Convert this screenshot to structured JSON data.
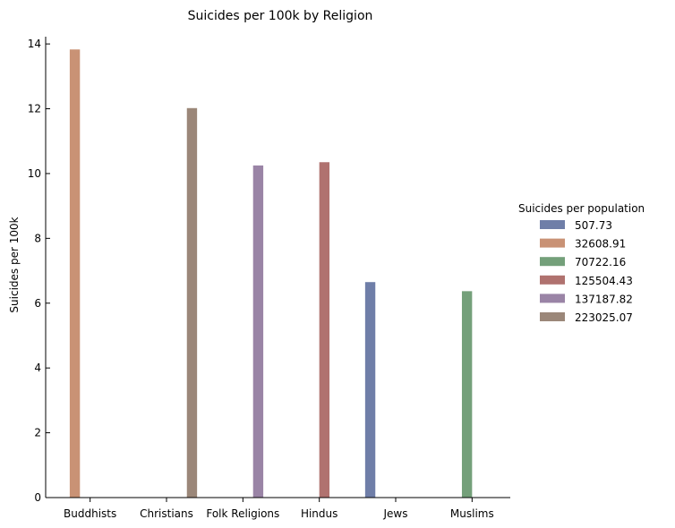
{
  "chart_data": {
    "type": "bar",
    "title": "Suicides per 100k by Religion",
    "xlabel": "",
    "ylabel": "Suicides per 100k",
    "ylim": [
      0,
      14.5
    ],
    "yticks": [
      0,
      2,
      4,
      6,
      8,
      10,
      12,
      14
    ],
    "categories": [
      "Buddhists",
      "Christians",
      "Folk Religions",
      "Hindus",
      "Jews",
      "Muslims"
    ],
    "legend_title": "Suicides per population",
    "legend_position": "right",
    "series": [
      {
        "name": "507.73",
        "color": "#6f7ea8",
        "values": [
          null,
          null,
          null,
          null,
          6.65,
          null
        ]
      },
      {
        "name": "32608.91",
        "color": "#c99275",
        "values": [
          13.83,
          null,
          null,
          null,
          null,
          null
        ]
      },
      {
        "name": "70722.16",
        "color": "#74a07a",
        "values": [
          null,
          null,
          null,
          null,
          null,
          6.37
        ]
      },
      {
        "name": "125504.43",
        "color": "#b0726f",
        "values": [
          null,
          null,
          null,
          10.35,
          null,
          null
        ]
      },
      {
        "name": "137187.82",
        "color": "#9a84a6",
        "values": [
          null,
          null,
          10.25,
          null,
          null,
          null
        ]
      },
      {
        "name": "223025.07",
        "color": "#9b8779",
        "values": [
          null,
          12.02,
          null,
          null,
          null,
          null
        ]
      }
    ]
  }
}
